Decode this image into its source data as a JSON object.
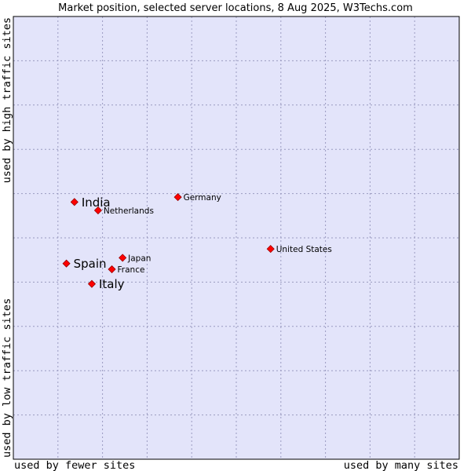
{
  "chart_data": {
    "type": "scatter",
    "title": "Market position, selected server locations, 8 Aug 2025, W3Techs.com",
    "xlabel_left": "used by fewer sites",
    "xlabel_right": "used by many sites",
    "ylabel_bottom": "used by low traffic sites",
    "ylabel_top": "used by high traffic sites",
    "xlim": [
      0,
      100
    ],
    "ylim": [
      0,
      100
    ],
    "grid": true,
    "colors": {
      "plot_bg": "#e3e4fa",
      "point": "#ff0000",
      "point_edge": "#990000",
      "frame": "#000000"
    },
    "points": [
      {
        "label": "India",
        "x": 13.7,
        "y": 58.1,
        "size": "large"
      },
      {
        "label": "Netherlands",
        "x": 19.0,
        "y": 56.2,
        "size": "small"
      },
      {
        "label": "Germany",
        "x": 36.9,
        "y": 59.2,
        "size": "small"
      },
      {
        "label": "United States",
        "x": 57.7,
        "y": 47.5,
        "size": "small"
      },
      {
        "label": "Japan",
        "x": 24.5,
        "y": 45.5,
        "size": "small"
      },
      {
        "label": "Spain",
        "x": 11.9,
        "y": 44.2,
        "size": "large"
      },
      {
        "label": "France",
        "x": 22.1,
        "y": 42.9,
        "size": "small"
      },
      {
        "label": "Italy",
        "x": 17.6,
        "y": 39.6,
        "size": "large"
      }
    ]
  }
}
